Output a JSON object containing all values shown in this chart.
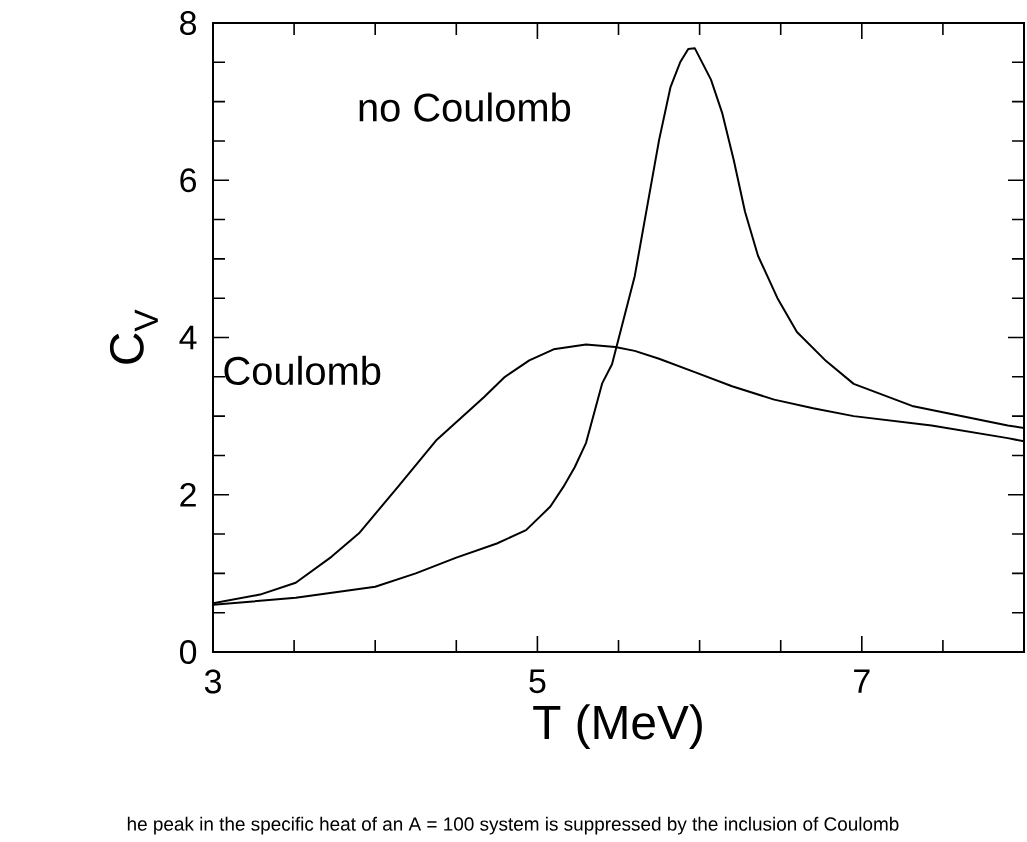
{
  "chart_data": {
    "type": "line",
    "xlabel": "T  (MeV)",
    "ylabel": "C$_{V}$",
    "xlim": [
      3,
      8
    ],
    "ylim": [
      0,
      8
    ],
    "xticks": [
      3,
      {
        "value": 3.5,
        "label": null
      },
      {
        "value": 4,
        "label": null
      },
      {
        "value": 4.5,
        "label": null
      },
      5,
      {
        "value": 5.5,
        "label": null
      },
      {
        "value": 6,
        "label": null
      },
      {
        "value": 6.5,
        "label": null
      },
      7,
      {
        "value": 7.5,
        "label": null
      }
    ],
    "yticks": [
      0,
      {
        "value": 0.5,
        "label": null
      },
      {
        "value": 1,
        "label": null
      },
      {
        "value": 1.5,
        "label": null
      },
      2,
      {
        "value": 2.5,
        "label": null
      },
      {
        "value": 3,
        "label": null
      },
      {
        "value": 3.5,
        "label": null
      },
      4,
      {
        "value": 4.5,
        "label": null
      },
      {
        "value": 5,
        "label": null
      },
      {
        "value": 5.5,
        "label": null
      },
      6,
      {
        "value": 6.5,
        "label": null
      },
      {
        "value": 7,
        "label": null
      },
      {
        "value": 7.5,
        "label": null
      },
      8
    ],
    "grid": false,
    "legend": false,
    "marker": "none",
    "line_style": "solid",
    "series": [
      {
        "color": "#000000",
        "x": [
          3,
          3.51,
          4.0,
          4.25,
          4.5,
          4.75,
          4.93,
          5.08,
          5.16,
          5.23,
          5.3,
          5.4,
          5.46,
          5.6,
          5.75,
          5.82,
          5.88,
          5.93,
          5.97,
          6.07,
          6.14,
          6.21,
          6.28,
          6.36,
          6.48,
          6.6,
          6.78,
          6.95,
          7.31,
          7.9,
          8
        ],
        "values": [
          0.6,
          0.69,
          0.83,
          1.0,
          1.2,
          1.38,
          1.55,
          1.85,
          2.1,
          2.35,
          2.66,
          3.42,
          3.66,
          4.78,
          6.51,
          7.18,
          7.5,
          7.67,
          7.68,
          7.28,
          6.85,
          6.26,
          5.6,
          5.04,
          4.5,
          4.07,
          3.7,
          3.41,
          3.13,
          2.88,
          2.85
        ]
      },
      {
        "color": "#000000",
        "x": [
          3,
          3.29,
          3.51,
          3.73,
          3.9,
          4.14,
          4.38,
          4.67,
          4.8,
          4.95,
          5.1,
          5.3,
          5.48,
          5.6,
          5.75,
          5.97,
          6.2,
          6.46,
          6.7,
          6.95,
          7.43,
          7.9,
          8
        ],
        "values": [
          0.62,
          0.73,
          0.88,
          1.21,
          1.51,
          2.1,
          2.7,
          3.24,
          3.5,
          3.71,
          3.85,
          3.91,
          3.88,
          3.83,
          3.73,
          3.56,
          3.38,
          3.21,
          3.1,
          3.0,
          2.88,
          2.72,
          2.68
        ]
      }
    ],
    "annotations": [
      "no Coulomb",
      "Coulomb",
      "he peak in the specific heat of an A = 100 system is suppressed by the inclusion of Coulomb"
    ]
  }
}
